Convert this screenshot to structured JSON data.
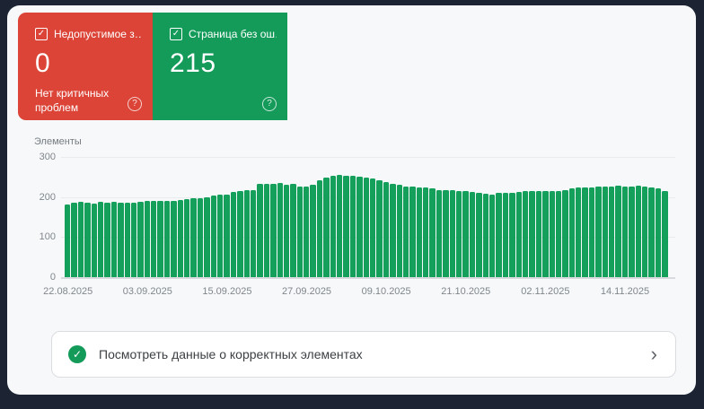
{
  "cards": {
    "error": {
      "label": "Недопустимое з…",
      "value": "0",
      "subtitle": "Нет критичных проблем",
      "color": "#db4437",
      "checkbox_icon": "✓",
      "help_icon": "?"
    },
    "valid": {
      "label": "Страница без ош…",
      "value": "215",
      "color": "#149b5a",
      "checkbox_icon": "✓",
      "help_icon": "?"
    }
  },
  "chart_data": {
    "type": "bar",
    "title": "",
    "ylabel": "Элементы",
    "xlabel": "",
    "ylim": [
      0,
      300
    ],
    "yticks": [
      0,
      100,
      200,
      300
    ],
    "grid": "horizontal",
    "legend": "none",
    "bar_color": "#149f5b",
    "x_tick_labels": [
      "22.08.2025",
      "03.09.2025",
      "15.09.2025",
      "27.09.2025",
      "09.10.2025",
      "21.10.2025",
      "02.11.2025",
      "14.11.2025"
    ],
    "x_tick_indices": [
      0,
      12,
      24,
      36,
      48,
      60,
      72,
      84
    ],
    "x": [
      "22.08.2025",
      "23.08.2025",
      "24.08.2025",
      "25.08.2025",
      "26.08.2025",
      "27.08.2025",
      "28.08.2025",
      "29.08.2025",
      "30.08.2025",
      "31.08.2025",
      "01.09.2025",
      "02.09.2025",
      "03.09.2025",
      "04.09.2025",
      "05.09.2025",
      "06.09.2025",
      "07.09.2025",
      "08.09.2025",
      "09.09.2025",
      "10.09.2025",
      "11.09.2025",
      "12.09.2025",
      "13.09.2025",
      "14.09.2025",
      "15.09.2025",
      "16.09.2025",
      "17.09.2025",
      "18.09.2025",
      "19.09.2025",
      "20.09.2025",
      "21.09.2025",
      "22.09.2025",
      "23.09.2025",
      "24.09.2025",
      "25.09.2025",
      "26.09.2025",
      "27.09.2025",
      "28.09.2025",
      "29.09.2025",
      "30.09.2025",
      "01.10.2025",
      "02.10.2025",
      "03.10.2025",
      "04.10.2025",
      "05.10.2025",
      "06.10.2025",
      "07.10.2025",
      "08.10.2025",
      "09.10.2025",
      "10.10.2025",
      "11.10.2025",
      "12.10.2025",
      "13.10.2025",
      "14.10.2025",
      "15.10.2025",
      "16.10.2025",
      "17.10.2025",
      "18.10.2025",
      "19.10.2025",
      "20.10.2025",
      "21.10.2025",
      "22.10.2025",
      "23.10.2025",
      "24.10.2025",
      "25.10.2025",
      "26.10.2025",
      "27.10.2025",
      "28.10.2025",
      "29.10.2025",
      "30.10.2025",
      "31.10.2025",
      "01.11.2025",
      "02.11.2025",
      "03.11.2025",
      "04.11.2025",
      "05.11.2025",
      "06.11.2025",
      "07.11.2025",
      "08.11.2025",
      "09.11.2025",
      "10.11.2025",
      "11.11.2025",
      "12.11.2025",
      "13.11.2025",
      "14.11.2025",
      "15.11.2025",
      "16.11.2025",
      "17.11.2025",
      "18.11.2025",
      "19.11.2025",
      "20.11.2025"
    ],
    "values": [
      182,
      186,
      187,
      185,
      184,
      187,
      185,
      187,
      186,
      185,
      185,
      188,
      190,
      190,
      191,
      190,
      191,
      193,
      194,
      196,
      198,
      200,
      203,
      205,
      207,
      213,
      216,
      218,
      218,
      232,
      233,
      233,
      234,
      231,
      233,
      227,
      226,
      230,
      241,
      248,
      252,
      255,
      254,
      253,
      250,
      248,
      247,
      242,
      237,
      233,
      230,
      227,
      226,
      224,
      223,
      222,
      218,
      218,
      217,
      216,
      214,
      213,
      210,
      208,
      207,
      210,
      211,
      211,
      212,
      214,
      215,
      215,
      215,
      214,
      215,
      218,
      222,
      223,
      224,
      225,
      226,
      226,
      227,
      228,
      226,
      227,
      228,
      226,
      224,
      221,
      215
    ]
  },
  "footer": {
    "label": "Посмотреть данные о корректных элементах",
    "check_icon": "✓",
    "chevron": "›"
  }
}
